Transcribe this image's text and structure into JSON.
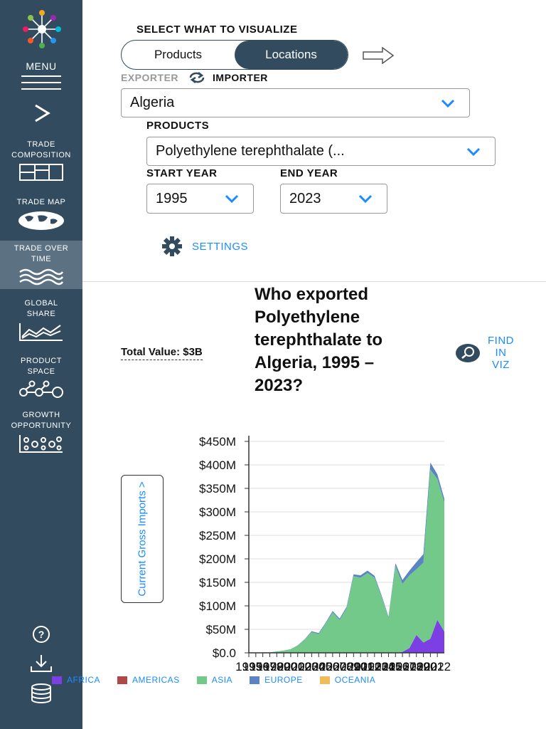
{
  "sidebar": {
    "menu_label": "MENU",
    "items": [
      {
        "label_line1": "TRADE",
        "label_line2": "COMPOSITION"
      },
      {
        "label_line1": "TRADE MAP",
        "label_line2": ""
      },
      {
        "label_line1": "TRADE OVER",
        "label_line2": "TIME"
      },
      {
        "label_line1": "GLOBAL",
        "label_line2": "SHARE"
      },
      {
        "label_line1": "PRODUCT",
        "label_line2": "SPACE"
      },
      {
        "label_line1": "GROWTH",
        "label_line2": "OPPORTUNITY"
      }
    ],
    "active_index": 2
  },
  "controls": {
    "section_title": "SELECT WHAT TO VISUALIZE",
    "toggle": {
      "option1": "Products",
      "option2": "Locations",
      "selected": "Locations"
    },
    "exporter_label": "EXPORTER",
    "importer_label": "IMPORTER",
    "location_value": "Algeria",
    "products_label": "PRODUCTS",
    "product_value": "Polyethylene terephthalate (...",
    "start_year_label": "START YEAR",
    "start_year_value": "1995",
    "end_year_label": "END YEAR",
    "end_year_value": "2023",
    "settings_label": "SETTINGS"
  },
  "viz": {
    "total_value": "Total Value: $3B",
    "title": "Who exported Polyethylene terephthalate to Algeria, 1995 – 2023?",
    "find_line1": "FIND",
    "find_line2": "IN",
    "find_line3": "VIZ",
    "y_toggle_label": "Current Gross Imports >"
  },
  "chart_data": {
    "type": "area",
    "stacked": true,
    "ylim": [
      0,
      450
    ],
    "y_unit": "M USD",
    "y_ticks": [
      "$0.0",
      "$50M",
      "$100M",
      "$150M",
      "$200M",
      "$250M",
      "$300M",
      "$350M",
      "$400M",
      "$450M"
    ],
    "x_tick_labels": [
      "1995",
      "1996",
      "1997",
      "1998",
      "1999",
      "2000",
      "2001",
      "2002",
      "2003",
      "2004",
      "2005",
      "2006",
      "2007",
      "2008",
      "2009",
      "2010",
      "2011",
      "2012",
      "2013",
      "2014",
      "2015",
      "2016",
      "2017",
      "2018",
      "2019",
      "2020",
      "2021",
      "2022"
    ],
    "x": [
      1995,
      1996,
      1997,
      1998,
      1999,
      2000,
      2001,
      2002,
      2003,
      2004,
      2005,
      2006,
      2007,
      2008,
      2009,
      2010,
      2011,
      2012,
      2013,
      2014,
      2015,
      2016,
      2017,
      2018,
      2019,
      2020,
      2021,
      2022,
      2023
    ],
    "series": [
      {
        "name": "AFRICA",
        "color": "#7b3fe4",
        "values": [
          0,
          0,
          0,
          0,
          0,
          0,
          0,
          0,
          0,
          0,
          0,
          0,
          0,
          0,
          0,
          0,
          0,
          0,
          0,
          0,
          0,
          0,
          2,
          10,
          38,
          22,
          30,
          70,
          45
        ]
      },
      {
        "name": "AMERICAS",
        "color": "#b04848",
        "values": [
          0,
          0,
          0,
          0,
          0,
          0,
          0,
          0,
          0,
          0,
          0,
          0,
          0,
          0,
          0,
          0,
          0,
          0,
          0,
          0,
          0,
          0,
          0,
          0,
          0,
          0,
          0,
          0,
          0
        ]
      },
      {
        "name": "ASIA",
        "color": "#72c98a",
        "values": [
          0,
          0,
          1,
          1,
          3,
          5,
          8,
          15,
          28,
          44,
          40,
          62,
          86,
          70,
          95,
          163,
          160,
          170,
          160,
          120,
          75,
          185,
          145,
          155,
          140,
          170,
          360,
          300,
          275
        ]
      },
      {
        "name": "EUROPE",
        "color": "#5b84c4",
        "values": [
          0,
          0,
          0,
          0,
          0,
          0,
          0,
          1,
          1,
          2,
          2,
          2,
          3,
          3,
          3,
          4,
          5,
          5,
          4,
          3,
          2,
          6,
          8,
          10,
          15,
          18,
          15,
          10,
          8
        ]
      },
      {
        "name": "OCEANIA",
        "color": "#f0bc5a",
        "values": [
          0,
          0,
          0,
          0,
          0,
          0,
          0,
          0,
          0,
          0,
          0,
          0,
          0,
          0,
          0,
          0,
          0,
          0,
          0,
          0,
          0,
          0,
          0,
          0,
          0,
          0,
          0,
          0,
          0
        ]
      }
    ],
    "grid": true,
    "legend_placement": "bottom"
  }
}
